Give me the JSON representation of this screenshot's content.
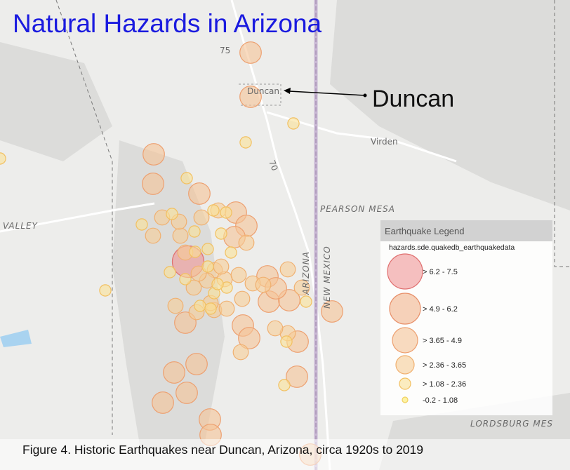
{
  "title": "Natural Hazards in Arizona",
  "annotation": "Duncan",
  "caption": "Figure 4. Historic Earthquakes near Duncan, Arizona, circa 1920s to 2019",
  "map_labels": {
    "route_75": "75",
    "route_70": "70",
    "duncan": "Duncan",
    "virden": "Virden",
    "pearson_mesa": "PEARSON MESA",
    "valley": "VALLEY",
    "lordsburg": "LORDSBURG MES",
    "arizona": "ARIZONA",
    "new_mexico": "NEW MEXICO"
  },
  "legend": {
    "title": "Earthquake Legend",
    "layer": "hazards.sde.quakedb_earthquakedata",
    "items": [
      "> 6.2 - 7.5",
      "> 4.9 - 6.2",
      "> 3.65 - 4.9",
      "> 2.36 - 3.65",
      "> 1.08 - 2.36",
      "-0.2 - 1.08"
    ]
  }
}
